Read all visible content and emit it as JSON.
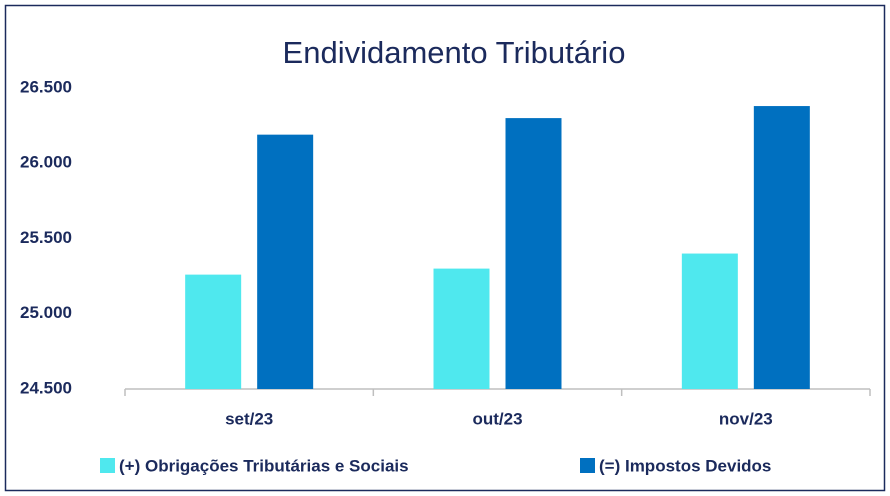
{
  "chart_data": {
    "type": "bar",
    "title": "Endividamento Tributário",
    "categories": [
      "set/23",
      "out/23",
      "nov/23"
    ],
    "series": [
      {
        "name": "(+) Obrigações Tributárias e Sociais",
        "color": "#4fe8ee",
        "values": [
          25260,
          25300,
          25400
        ]
      },
      {
        "name": "(=) Impostos Devidos",
        "color": "#0070c0",
        "values": [
          26190,
          26300,
          26380
        ]
      }
    ],
    "ylim": [
      24500,
      26500
    ],
    "yticks": [
      {
        "value": 24500,
        "label": "24.500"
      },
      {
        "value": 25000,
        "label": "25.000"
      },
      {
        "value": 25500,
        "label": "25.500"
      },
      {
        "value": 26000,
        "label": "26.000"
      },
      {
        "value": 26500,
        "label": "26.500"
      }
    ],
    "grid": false,
    "legend": "bottom"
  }
}
